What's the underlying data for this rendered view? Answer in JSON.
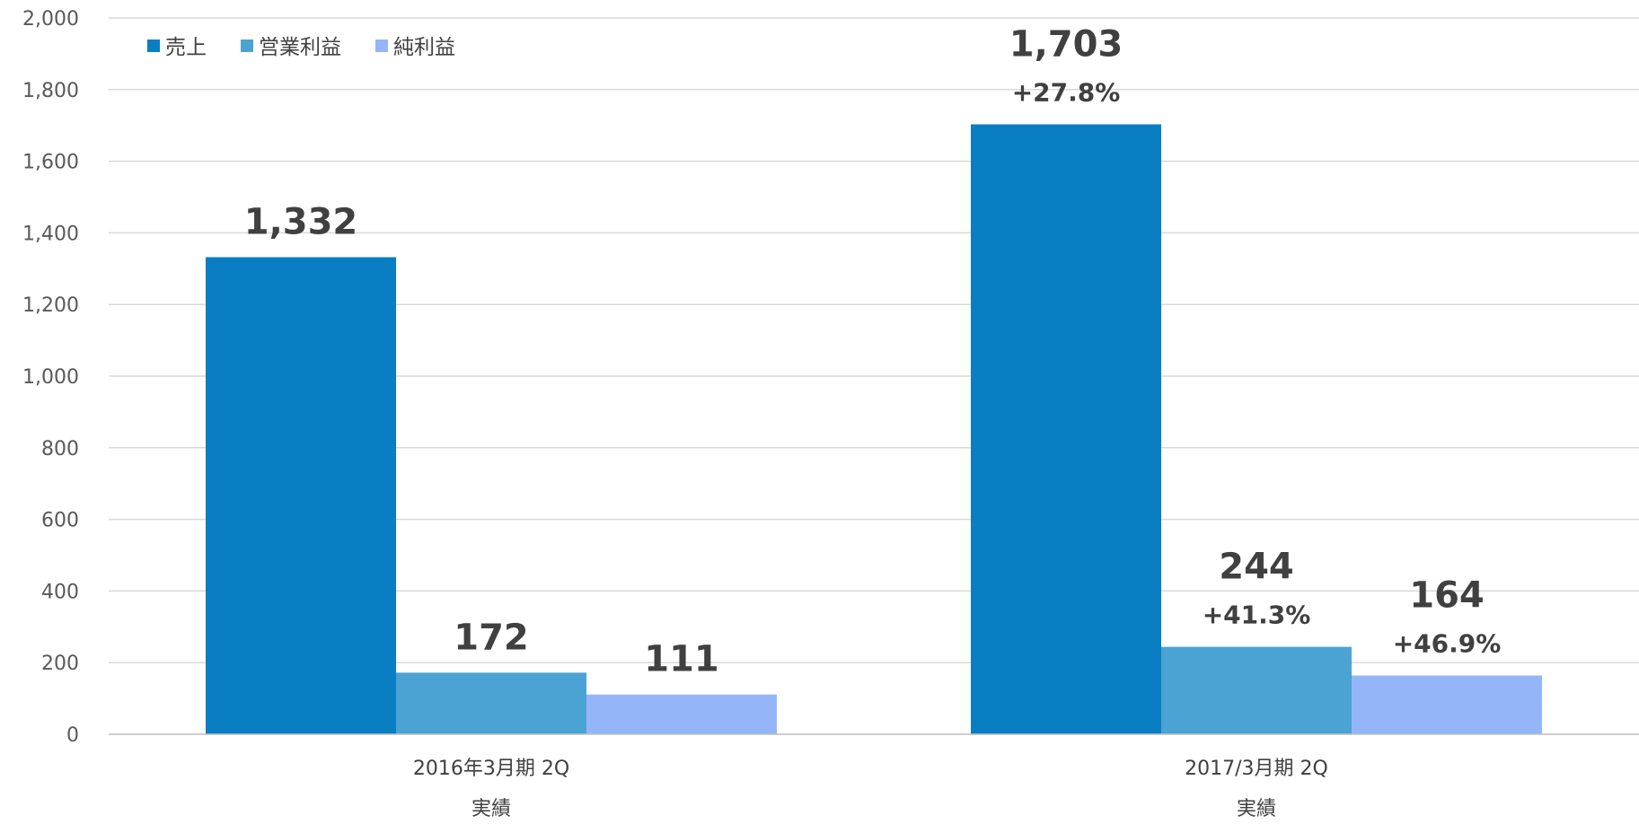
{
  "chart_data": {
    "type": "bar",
    "title": "",
    "xlabel": "",
    "ylabel": "",
    "ylim": [
      0,
      2000
    ],
    "yticks": [
      0,
      200,
      400,
      600,
      800,
      1000,
      1200,
      1400,
      1600,
      1800,
      2000
    ],
    "ytick_labels": [
      "0",
      "200",
      "400",
      "600",
      "800",
      "1,000",
      "1,200",
      "1,400",
      "1,600",
      "1,800",
      "2,000"
    ],
    "grid": true,
    "legend_position": "top-left",
    "categories": [
      [
        "2016年3月期 2Q",
        "実績"
      ],
      [
        "2017/3月期 2Q",
        "実績"
      ]
    ],
    "series": [
      {
        "name": "売上",
        "color": "#0A7EC2",
        "values": [
          1332,
          1703
        ],
        "value_labels": [
          "1,332",
          "1,703"
        ],
        "growth_labels": [
          "",
          "+27.8%"
        ]
      },
      {
        "name": "営業利益",
        "color": "#4BA3D3",
        "values": [
          172,
          244
        ],
        "value_labels": [
          "172",
          "244"
        ],
        "growth_labels": [
          "",
          "+41.3%"
        ]
      },
      {
        "name": "純利益",
        "color": "#94B6F9",
        "values": [
          111,
          164
        ],
        "value_labels": [
          "111",
          "164"
        ],
        "growth_labels": [
          "",
          "+46.9%"
        ]
      }
    ]
  }
}
